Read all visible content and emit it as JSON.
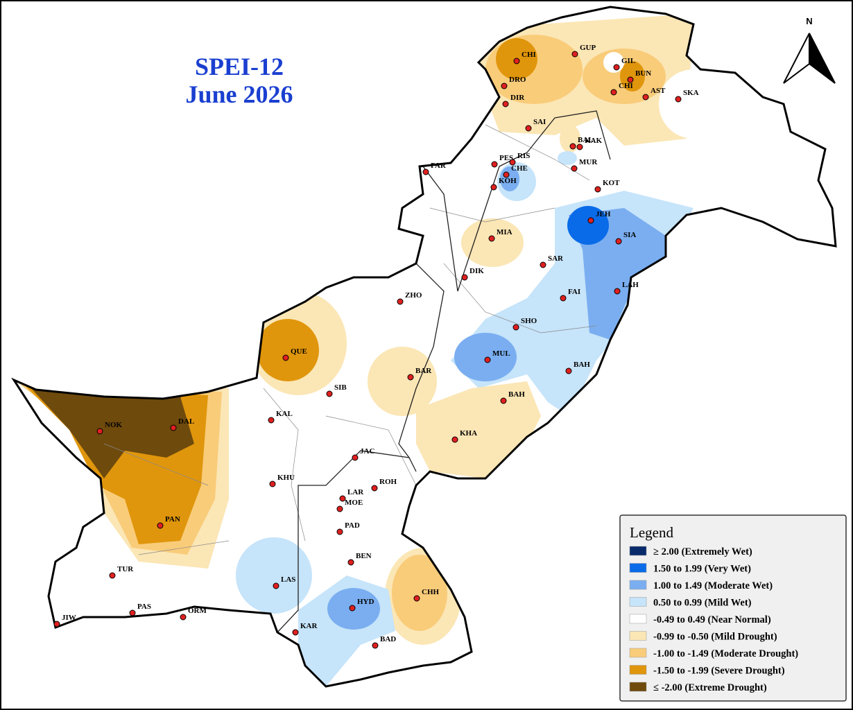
{
  "title": {
    "index": "SPEI-12",
    "period": "June 2026"
  },
  "north_label": "N",
  "legend": {
    "title": "Legend",
    "items": [
      {
        "label": "≥ 2.00 (Extremely Wet)",
        "color": "#082a6b"
      },
      {
        "label": "1.50 to 1.99 (Very Wet)",
        "color": "#0a6be8"
      },
      {
        "label": "1.00 to 1.49 (Moderate Wet)",
        "color": "#7aaef0"
      },
      {
        "label": "0.50 to 0.99 (Mild Wet)",
        "color": "#c6e4fa"
      },
      {
        "label": "-0.49 to 0.49 (Near Normal)",
        "color": "#ffffff"
      },
      {
        "label": "-0.99 to -0.50 (Mild Drought)",
        "color": "#fbe6b5"
      },
      {
        "label": "-1.00 to -1.49 (Moderate Drought)",
        "color": "#f9cc7a"
      },
      {
        "label": "-1.50 to -1.99 (Severe Drought)",
        "color": "#e0960c"
      },
      {
        "label": "≤ -2.00 (Extreme Drought)",
        "color": "#6e4a0d"
      }
    ]
  },
  "stations": [
    "CHI",
    "DRO",
    "DIR",
    "GUP",
    "GIL",
    "BUN",
    "CHI",
    "AST",
    "SKA",
    "SAI",
    "PAR",
    "PES",
    "RIS",
    "CHE",
    "KOH",
    "BAL",
    "KAK",
    "MUR",
    "KOT",
    "JEH",
    "SIA",
    "MIA",
    "SAR",
    "DIK",
    "FAI",
    "LAH",
    "ZHO",
    "SHO",
    "MUL",
    "BAR",
    "QUE",
    "SIB",
    "BAH",
    "BAH",
    "KAL",
    "NOK",
    "DAL",
    "KHA",
    "JAC",
    "KHU",
    "LAR",
    "ROH",
    "MOE",
    "PAD",
    "PAN",
    "BEN",
    "TUR",
    "LAS",
    "CHH",
    "HYD",
    "PAS",
    "ORM",
    "JIW",
    "KAR",
    "BAD"
  ]
}
